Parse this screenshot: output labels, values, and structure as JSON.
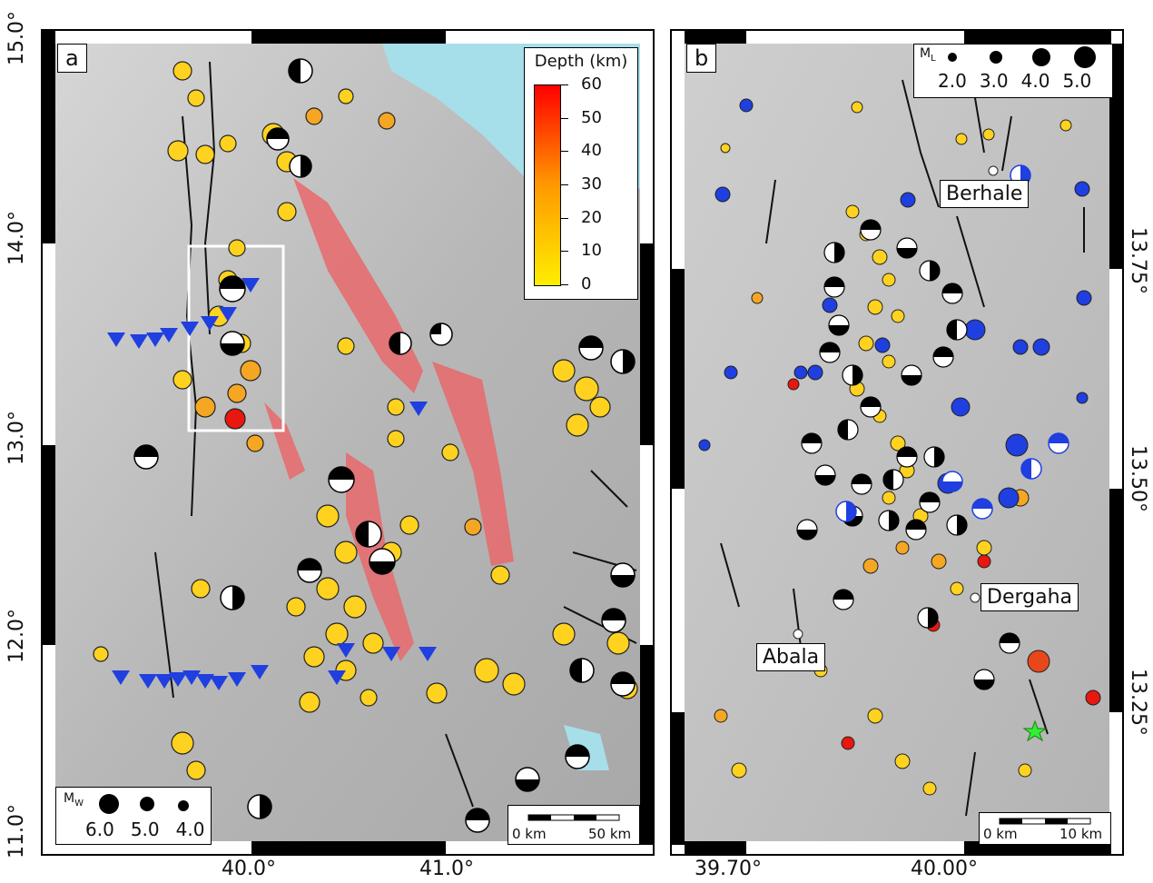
{
  "panel_a": {
    "label": "a",
    "lat_ticks": [
      "15.0°",
      "14.0°",
      "13.0°",
      "12.0°",
      "11.0°"
    ],
    "lon_ticks": [
      "40.0°",
      "41.0°"
    ],
    "depth_legend": {
      "title": "Depth (km)",
      "ticks": [
        "60",
        "50",
        "40",
        "30",
        "20",
        "10",
        "0"
      ],
      "colors": [
        "#ff0000",
        "#ff9900",
        "#ffee00"
      ]
    },
    "mw_legend": {
      "title": "M",
      "subscript": "W",
      "values": [
        "6.0",
        "5.0",
        "4.0"
      ]
    },
    "scale_bar": {
      "label_start": "0 km",
      "label_end": "50 km"
    }
  },
  "panel_b": {
    "label": "b",
    "lat_ticks": [
      "13.75°",
      "13.50°",
      "13.25°"
    ],
    "lon_ticks": [
      "39.70°",
      "40.00°"
    ],
    "ml_legend": {
      "title": "M",
      "subscript": "L",
      "values": [
        "2.0",
        "3.0",
        "4.0",
        "5.0"
      ]
    },
    "towns": [
      "Berhale",
      "Dergaha",
      "Abala"
    ],
    "scale_bar": {
      "label_start": "0 km",
      "label_end": "10 km"
    }
  },
  "colors": {
    "relief": "#bdbdbd",
    "sea": "#a6dfea",
    "rift_segment": "#e8696b",
    "station": "#1f3fe0",
    "event_shallow": "#ffd21f",
    "event_mid": "#f5a623",
    "event_deep": "#e8471c",
    "event_blue": "#1f3fe0"
  }
}
